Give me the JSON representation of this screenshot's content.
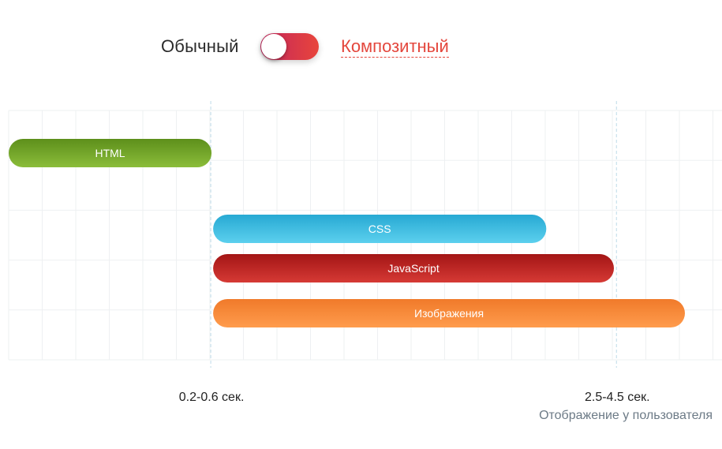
{
  "toggle": {
    "left_label": "Обычный",
    "right_label": "Композитный",
    "state": "left",
    "left_color": "#2b2b2b",
    "right_color": "#e4473d"
  },
  "chart_data": {
    "type": "bar",
    "orientation": "horizontal-timeline",
    "grid": true,
    "categories": [
      "HTML",
      "CSS",
      "JavaScript",
      "Изображения"
    ],
    "series": [
      {
        "label": "HTML",
        "start": 0,
        "end": 0.3,
        "color_top": "#5d8f1b",
        "color_bottom": "#8bbd3a"
      },
      {
        "label": "CSS",
        "start": 0.3,
        "end": 0.795,
        "color_top": "#27a9d3",
        "color_bottom": "#5cd0ee"
      },
      {
        "label": "JavaScript",
        "start": 0.3,
        "end": 0.895,
        "color_top": "#a31515",
        "color_bottom": "#d63a35"
      },
      {
        "label": "Изображения",
        "start": 0.3,
        "end": 1.0,
        "color_top": "#f07a2a",
        "color_bottom": "#ff9c4d"
      }
    ],
    "markers": [
      {
        "position": 0.3,
        "label": "0.2-0.6 сек."
      },
      {
        "position": 0.9,
        "label": "2.5-4.5 сек.",
        "note": "Отображение у пользователя"
      }
    ],
    "xlim": [
      0,
      1
    ]
  }
}
